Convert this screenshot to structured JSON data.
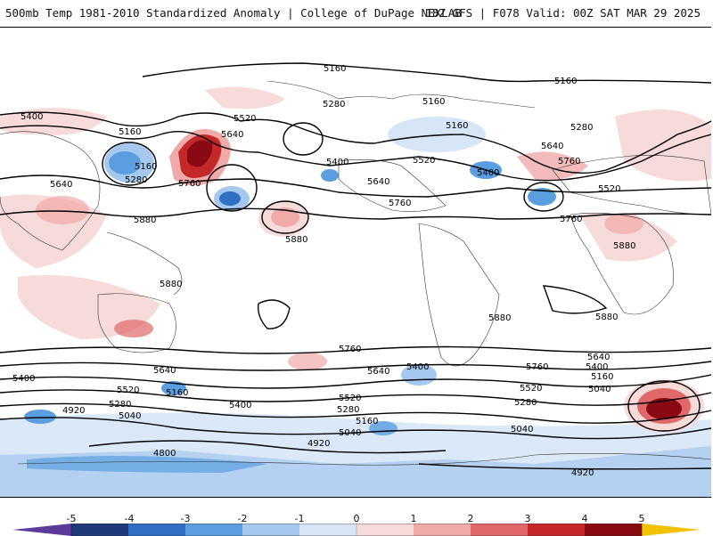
{
  "header": {
    "left_title": "500mb Temp 1981-2010 Standardized Anomaly | College of DuPage NEXLAB",
    "right_title": "18Z GFS | F078 Valid: 00Z SAT MAR 29 2025"
  },
  "map": {
    "contour_labels": {
      "c5160_top": "5160",
      "c5160_top_right": "5160",
      "c5400_left": "5400",
      "c5520_pac": "5520",
      "c5640_pac": "5640",
      "c5160_pac_low": "5160",
      "c5160_pac_low2": "5160",
      "c5280_pac": "5280",
      "c5760_pac": "5760",
      "c5640_left": "5640",
      "c5280_na": "5280",
      "c5400_na": "5400",
      "c5160_canada": "5160",
      "c5160_canada2": "5160",
      "c5520_us": "5520",
      "c5640_us": "5640",
      "c5760_us": "5760",
      "c5400_atl": "5400",
      "c5640_atl": "5640",
      "c5760_atl": "5760",
      "c5280_eur": "5280",
      "c5520_eur": "5520",
      "c5880_pac": "5880",
      "c5880_hi": "5880",
      "c5880_wpac": "5880",
      "c5880_afr": "5880",
      "c5880_sa": "5880",
      "c5880_safr": "5880",
      "s5760_aus": "5760",
      "s5640_left": "5640",
      "s5400_left": "5400",
      "s5520_left": "5520",
      "s5160_left": "5160",
      "s5280_left": "5280",
      "s5040_left": "5040",
      "s4920_left": "4920",
      "s4800_left": "4800",
      "s5400_pac": "5400",
      "s5760_pac": "5760",
      "s5520_pac": "5520",
      "s5280_pac": "5280",
      "s5160_pac": "5160",
      "s5040_pac": "5040",
      "s4920_pac": "4920",
      "s5640_sa": "5640",
      "s5400_sa": "5400",
      "s5760_atl": "5760",
      "s5520_atl": "5520",
      "s5280_atl": "5280",
      "s5040_atl": "5040",
      "s5640_ind": "5640",
      "s5400_ind": "5400",
      "s5160_ind": "5160",
      "s5040_ind": "5040",
      "s4920_bottom": "4920"
    }
  },
  "legend": {
    "ticks": [
      "-5",
      "-4",
      "-3",
      "-2",
      "-1",
      "0",
      "1",
      "2",
      "3",
      "4",
      "5"
    ],
    "colors": {
      "below_min": "#5b3a9a",
      "neg5": "#1f3a7a",
      "neg4": "#2f6fc4",
      "neg3": "#5a9ee0",
      "neg2": "#a4c8ee",
      "neg1": "#d6e6f7",
      "pos1": "#f7dada",
      "pos2": "#f0aaaa",
      "pos3": "#e06868",
      "pos4": "#c42828",
      "pos5": "#8a0a14",
      "above_max": "#f2c200"
    }
  }
}
